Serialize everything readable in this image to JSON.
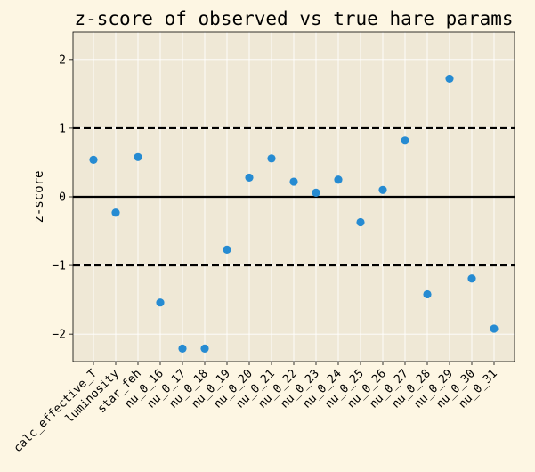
{
  "chart_data": {
    "type": "scatter",
    "title": "z-score of observed vs true hare params",
    "xlabel": "",
    "ylabel": "z-score",
    "ylim": [
      -2.4,
      2.4
    ],
    "yticks": [
      -2,
      -1,
      0,
      1,
      2
    ],
    "ytick_labels": [
      "−2",
      "−1",
      "0",
      "1",
      "2"
    ],
    "grid": true,
    "reference_lines": [
      {
        "y": 1,
        "style": "dashed"
      },
      {
        "y": 0,
        "style": "solid"
      },
      {
        "y": -1,
        "style": "dashed"
      }
    ],
    "categories": [
      "calc_effective_T",
      "luminosity",
      "star_feh",
      "nu_0_16",
      "nu_0_17",
      "nu_0_18",
      "nu_0_19",
      "nu_0_20",
      "nu_0_21",
      "nu_0_22",
      "nu_0_23",
      "nu_0_24",
      "nu_0_25",
      "nu_0_26",
      "nu_0_27",
      "nu_0_28",
      "nu_0_29",
      "nu_0_30",
      "nu_0_31"
    ],
    "values": [
      0.54,
      -0.23,
      0.58,
      -1.54,
      -2.21,
      -2.21,
      -0.77,
      0.28,
      0.56,
      0.22,
      0.06,
      0.25,
      -0.37,
      0.1,
      0.82,
      -1.42,
      1.72,
      -1.19,
      -1.92
    ],
    "colors": {
      "background": "#fdf6e3",
      "plot_area": "#efe8d6",
      "point": "#268bd2",
      "grid": "#ffffff"
    }
  }
}
